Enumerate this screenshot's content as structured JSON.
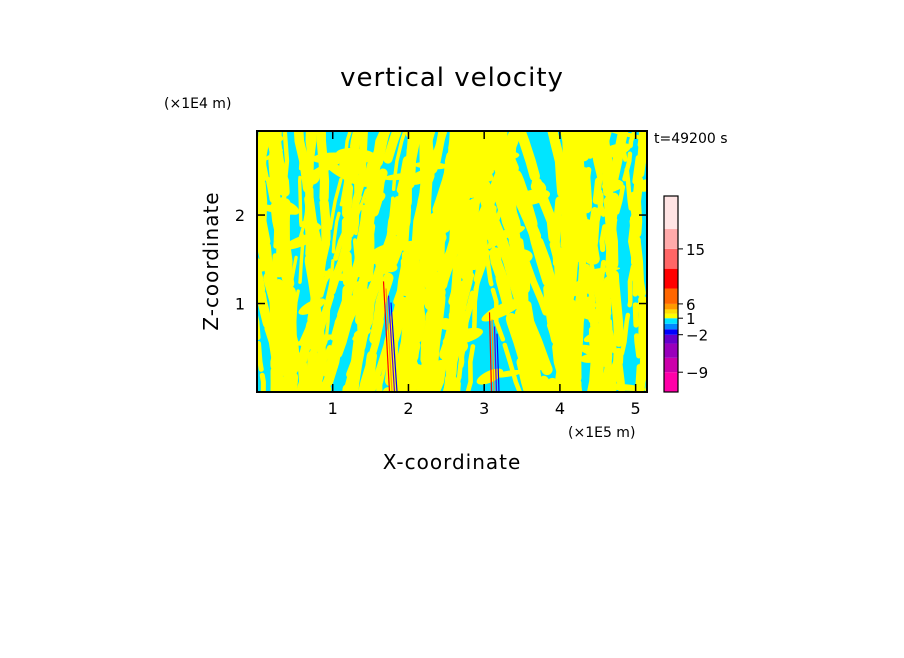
{
  "chart_data": {
    "type": "heatmap",
    "title": "vertical velocity",
    "xlabel": "X-coordinate",
    "ylabel": "Z-coordinate",
    "x_unit": "(×1E5 m)",
    "y_unit": "(×1E4 m)",
    "time_label": "t=49200 s",
    "xlim": [
      0,
      5.15
    ],
    "ylim": [
      0,
      2.95
    ],
    "x_ticks": [
      1,
      2,
      3,
      4,
      5
    ],
    "x_tick_labels": [
      "1",
      "2",
      "3",
      "4",
      "5"
    ],
    "y_ticks": [
      1,
      2
    ],
    "y_tick_labels": [
      "1",
      "2"
    ],
    "field_colors": {
      "positive": "#ffff00",
      "negative": "#00e5ff"
    },
    "colorbar": {
      "levels": [
        -12,
        -9,
        -6,
        -4,
        -2,
        -1,
        0,
        1,
        2,
        4,
        6,
        9,
        12,
        15,
        18,
        21
      ],
      "colors": [
        "#ff00a8",
        "#cc00aa",
        "#9900bb",
        "#6600cc",
        "#0000ff",
        "#0088ff",
        "#00e5ff",
        "#ffff00",
        "#ffdd00",
        "#ff9900",
        "#ff6600",
        "#ff0000",
        "#ff6666",
        "#ffaaaa",
        "#ffe4e4"
      ],
      "labels": [
        {
          "value": 15,
          "text": "15"
        },
        {
          "value": 6,
          "text": "6"
        },
        {
          "value": 1,
          "text": "1"
        },
        {
          "value": -2,
          "text": "−2"
        },
        {
          "value": -9,
          "text": "−9"
        }
      ]
    },
    "grid": false,
    "legend": "colorbar-right"
  }
}
